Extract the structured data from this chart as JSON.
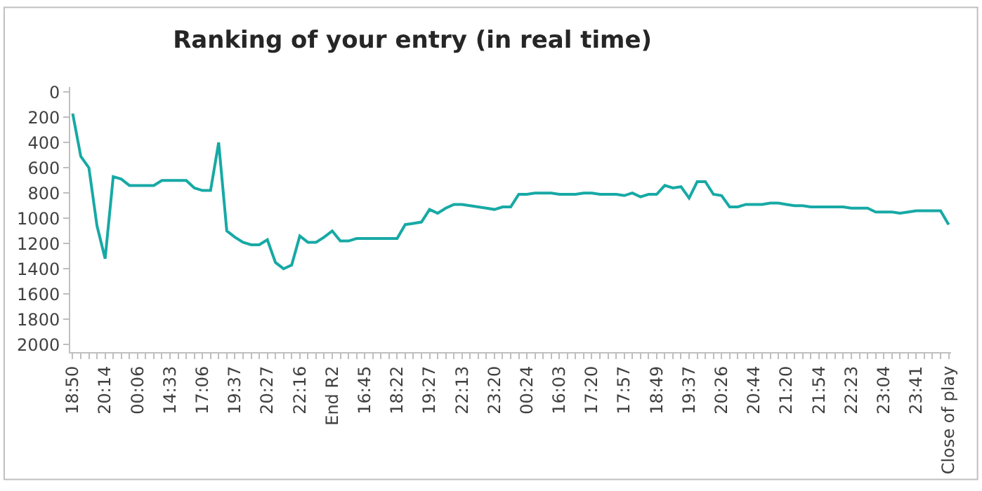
{
  "chart_data": {
    "type": "line",
    "title": "Ranking of your entry (in real time)",
    "categories": [
      "18:50",
      null,
      null,
      null,
      "20:14",
      null,
      null,
      null,
      "00:06",
      null,
      null,
      null,
      "14:33",
      null,
      null,
      null,
      "17:06",
      null,
      null,
      null,
      "19:37",
      null,
      null,
      null,
      "20:27",
      null,
      null,
      null,
      "22:16",
      null,
      null,
      null,
      "End R2",
      null,
      null,
      null,
      "16:45",
      null,
      null,
      null,
      "18:22",
      null,
      null,
      null,
      "19:27",
      null,
      null,
      null,
      "22:13",
      null,
      null,
      null,
      "23:20",
      null,
      null,
      null,
      "00:24",
      null,
      null,
      null,
      "16:03",
      null,
      null,
      null,
      "17:20",
      null,
      null,
      null,
      "17:57",
      null,
      null,
      null,
      "18:49",
      null,
      null,
      null,
      "19:37",
      null,
      null,
      null,
      "20:26",
      null,
      null,
      null,
      "20:44",
      null,
      null,
      null,
      "21:20",
      null,
      null,
      null,
      "21:54",
      null,
      null,
      null,
      "22:23",
      null,
      null,
      null,
      "23:04",
      null,
      null,
      null,
      "23:41",
      null,
      null,
      null,
      "Close of play"
    ],
    "series": [
      {
        "color": "#17a9a5",
        "values": [
          170,
          510,
          600,
          1060,
          1320,
          670,
          690,
          740,
          740,
          740,
          740,
          700,
          700,
          700,
          700,
          760,
          780,
          780,
          400,
          1100,
          1150,
          1190,
          1210,
          1210,
          1170,
          1350,
          1400,
          1370,
          1140,
          1190,
          1190,
          1150,
          1100,
          1180,
          1180,
          1160,
          1160,
          1160,
          1160,
          1160,
          1160,
          1050,
          1040,
          1030,
          930,
          960,
          920,
          890,
          890,
          900,
          910,
          920,
          930,
          910,
          910,
          810,
          810,
          800,
          800,
          800,
          810,
          810,
          810,
          800,
          800,
          810,
          810,
          810,
          820,
          800,
          830,
          810,
          810,
          740,
          760,
          750,
          840,
          710,
          710,
          810,
          820,
          910,
          910,
          890,
          890,
          890,
          880,
          880,
          890,
          900,
          900,
          910,
          910,
          910,
          910,
          910,
          920,
          920,
          920,
          950,
          950,
          950,
          960,
          950,
          940,
          940,
          940,
          940,
          1050
        ]
      }
    ],
    "ylim": [
      2060,
      -40
    ],
    "yticks": [
      0,
      200,
      400,
      600,
      800,
      1000,
      1200,
      1400,
      1600,
      1800,
      2000
    ],
    "grid": false,
    "marker": "none",
    "line_style": "solid"
  }
}
